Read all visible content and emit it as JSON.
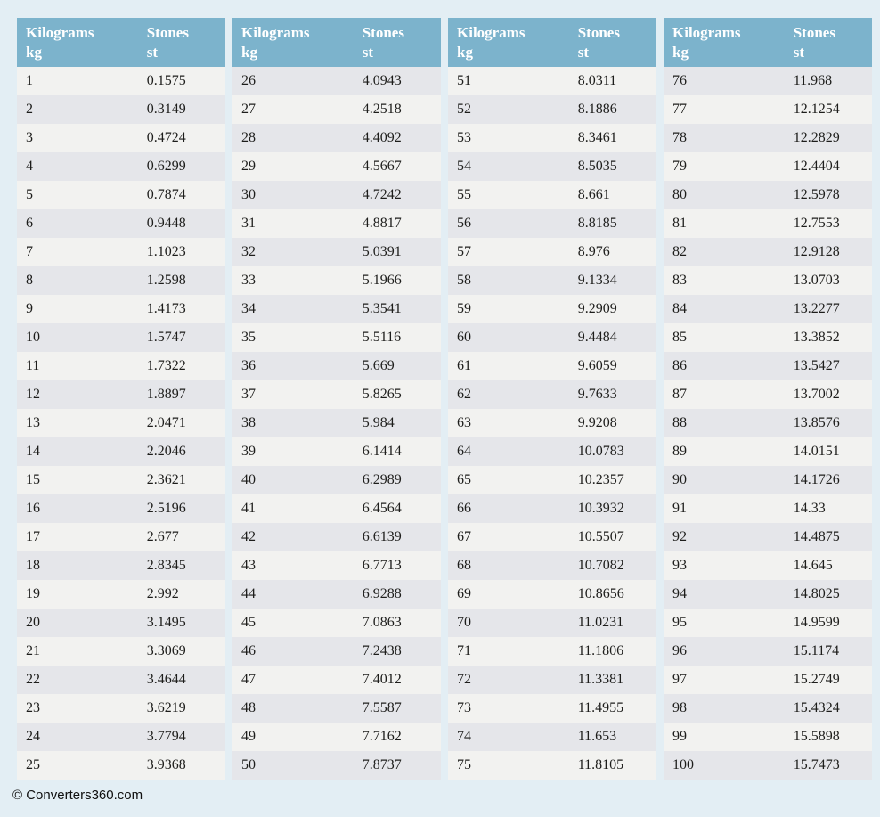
{
  "colors": {
    "page_bg": "#e3eef4",
    "header_bg": "#7cb3cc",
    "header_text": "#ffffff",
    "row_odd": "#f2f2f0",
    "row_even": "#e5e6ea",
    "cell_text": "#1d1d1b"
  },
  "header": {
    "col1_title": "Kilograms",
    "col1_unit": "kg",
    "col2_title": "Stones",
    "col2_unit": "st"
  },
  "tables": [
    {
      "rows": [
        [
          "1",
          "0.1575"
        ],
        [
          "2",
          "0.3149"
        ],
        [
          "3",
          "0.4724"
        ],
        [
          "4",
          "0.6299"
        ],
        [
          "5",
          "0.7874"
        ],
        [
          "6",
          "0.9448"
        ],
        [
          "7",
          "1.1023"
        ],
        [
          "8",
          "1.2598"
        ],
        [
          "9",
          "1.4173"
        ],
        [
          "10",
          "1.5747"
        ],
        [
          "11",
          "1.7322"
        ],
        [
          "12",
          "1.8897"
        ],
        [
          "13",
          "2.0471"
        ],
        [
          "14",
          "2.2046"
        ],
        [
          "15",
          "2.3621"
        ],
        [
          "16",
          "2.5196"
        ],
        [
          "17",
          "2.677"
        ],
        [
          "18",
          "2.8345"
        ],
        [
          "19",
          "2.992"
        ],
        [
          "20",
          "3.1495"
        ],
        [
          "21",
          "3.3069"
        ],
        [
          "22",
          "3.4644"
        ],
        [
          "23",
          "3.6219"
        ],
        [
          "24",
          "3.7794"
        ],
        [
          "25",
          "3.9368"
        ]
      ]
    },
    {
      "rows": [
        [
          "26",
          "4.0943"
        ],
        [
          "27",
          "4.2518"
        ],
        [
          "28",
          "4.4092"
        ],
        [
          "29",
          "4.5667"
        ],
        [
          "30",
          "4.7242"
        ],
        [
          "31",
          "4.8817"
        ],
        [
          "32",
          "5.0391"
        ],
        [
          "33",
          "5.1966"
        ],
        [
          "34",
          "5.3541"
        ],
        [
          "35",
          "5.5116"
        ],
        [
          "36",
          "5.669"
        ],
        [
          "37",
          "5.8265"
        ],
        [
          "38",
          "5.984"
        ],
        [
          "39",
          "6.1414"
        ],
        [
          "40",
          "6.2989"
        ],
        [
          "41",
          "6.4564"
        ],
        [
          "42",
          "6.6139"
        ],
        [
          "43",
          "6.7713"
        ],
        [
          "44",
          "6.9288"
        ],
        [
          "45",
          "7.0863"
        ],
        [
          "46",
          "7.2438"
        ],
        [
          "47",
          "7.4012"
        ],
        [
          "48",
          "7.5587"
        ],
        [
          "49",
          "7.7162"
        ],
        [
          "50",
          "7.8737"
        ]
      ]
    },
    {
      "rows": [
        [
          "51",
          "8.0311"
        ],
        [
          "52",
          "8.1886"
        ],
        [
          "53",
          "8.3461"
        ],
        [
          "54",
          "8.5035"
        ],
        [
          "55",
          "8.661"
        ],
        [
          "56",
          "8.8185"
        ],
        [
          "57",
          "8.976"
        ],
        [
          "58",
          "9.1334"
        ],
        [
          "59",
          "9.2909"
        ],
        [
          "60",
          "9.4484"
        ],
        [
          "61",
          "9.6059"
        ],
        [
          "62",
          "9.7633"
        ],
        [
          "63",
          "9.9208"
        ],
        [
          "64",
          "10.0783"
        ],
        [
          "65",
          "10.2357"
        ],
        [
          "66",
          "10.3932"
        ],
        [
          "67",
          "10.5507"
        ],
        [
          "68",
          "10.7082"
        ],
        [
          "69",
          "10.8656"
        ],
        [
          "70",
          "11.0231"
        ],
        [
          "71",
          "11.1806"
        ],
        [
          "72",
          "11.3381"
        ],
        [
          "73",
          "11.4955"
        ],
        [
          "74",
          "11.653"
        ],
        [
          "75",
          "11.8105"
        ]
      ]
    },
    {
      "rows": [
        [
          "76",
          "11.968"
        ],
        [
          "77",
          "12.1254"
        ],
        [
          "78",
          "12.2829"
        ],
        [
          "79",
          "12.4404"
        ],
        [
          "80",
          "12.5978"
        ],
        [
          "81",
          "12.7553"
        ],
        [
          "82",
          "12.9128"
        ],
        [
          "83",
          "13.0703"
        ],
        [
          "84",
          "13.2277"
        ],
        [
          "85",
          "13.3852"
        ],
        [
          "86",
          "13.5427"
        ],
        [
          "87",
          "13.7002"
        ],
        [
          "88",
          "13.8576"
        ],
        [
          "89",
          "14.0151"
        ],
        [
          "90",
          "14.1726"
        ],
        [
          "91",
          "14.33"
        ],
        [
          "92",
          "14.4875"
        ],
        [
          "93",
          "14.645"
        ],
        [
          "94",
          "14.8025"
        ],
        [
          "95",
          "14.9599"
        ],
        [
          "96",
          "15.1174"
        ],
        [
          "97",
          "15.2749"
        ],
        [
          "98",
          "15.4324"
        ],
        [
          "99",
          "15.5898"
        ],
        [
          "100",
          "15.7473"
        ]
      ]
    }
  ],
  "footer": {
    "copyright": "© Converters360.com"
  }
}
